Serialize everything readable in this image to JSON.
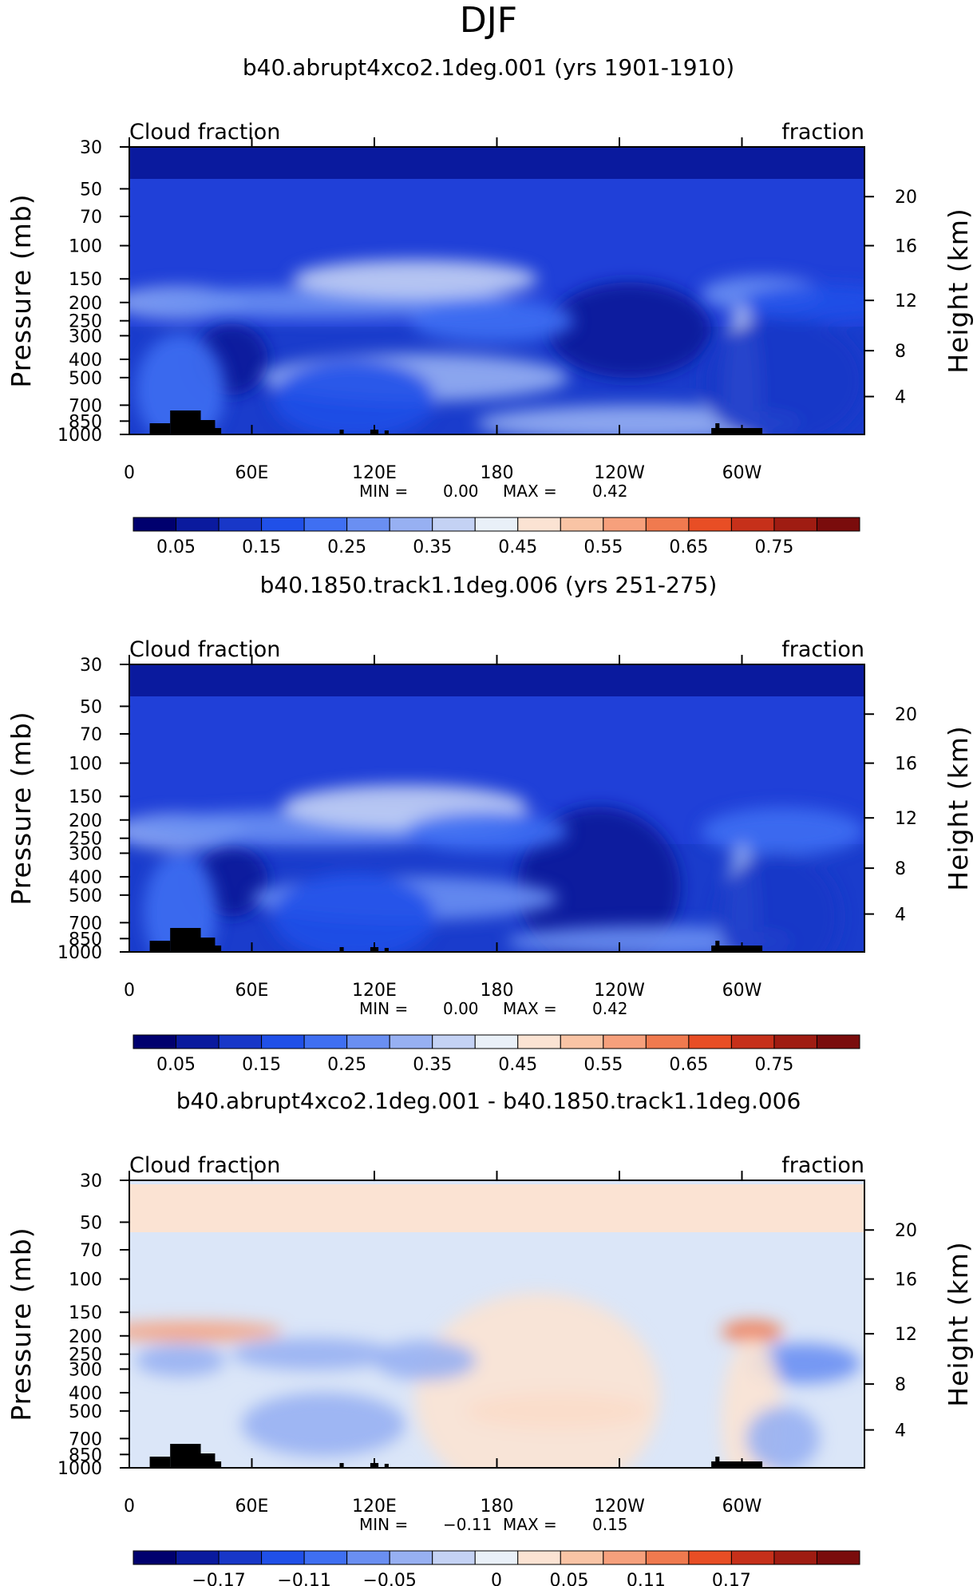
{
  "page_title": "DJF",
  "chart_data": [
    {
      "type": "heatmap",
      "title": "b40.abrupt4xco2.1deg.001 (yrs 1901-1910)",
      "left_string": "Cloud fraction",
      "right_string": "fraction",
      "ylabel": "Pressure (mb)",
      "y2label": "Height (km)",
      "xlim": [
        0,
        360
      ],
      "x_ticks": [
        "0",
        "60E",
        "120E",
        "180",
        "120W",
        "60W"
      ],
      "y_ticks": [
        "30",
        "50",
        "70",
        "100",
        "150",
        "200",
        "250",
        "300",
        "400",
        "500",
        "700",
        "850",
        "1000"
      ],
      "y2_ticks": [
        "20",
        "16",
        "12",
        "8",
        "4"
      ],
      "min_label": "MIN =",
      "min": "0.00",
      "max_label": "MAX =",
      "max": "0.42",
      "colorbar_ticks": [
        "0.05",
        "0.15",
        "0.25",
        "0.35",
        "0.45",
        "0.55",
        "0.65",
        "0.75"
      ],
      "colorbar_colors": [
        "#00006e",
        "#0a1a9e",
        "#1837c8",
        "#2050e8",
        "#3f6ff2",
        "#6a8ff2",
        "#97b0f2",
        "#c4d2f4",
        "#e9f0f8",
        "#fbe3d3",
        "#f9c4a5",
        "#f6a07c",
        "#f07a4f",
        "#e84e25",
        "#c6301a",
        "#9f1c12",
        "#7a0c0c"
      ],
      "features": [
        {
          "lon": 25,
          "p": 200,
          "w": 32,
          "h": 40,
          "v": 0.32
        },
        {
          "lon": 25,
          "p": 580,
          "w": 22,
          "h": 140,
          "v": 0.22
        },
        {
          "lon": 95,
          "p": 200,
          "w": 95,
          "h": 38,
          "v": 0.26
        },
        {
          "lon": 140,
          "p": 150,
          "w": 60,
          "h": 48,
          "v": 0.36
        },
        {
          "lon": 140,
          "p": 500,
          "w": 75,
          "h": 60,
          "v": 0.32
        },
        {
          "lon": 110,
          "p": 650,
          "w": 40,
          "h": 100,
          "v": 0.18
        },
        {
          "lon": 178,
          "p": 250,
          "w": 40,
          "h": 55,
          "v": 0.2
        },
        {
          "lon": 310,
          "p": 180,
          "w": 30,
          "h": 45,
          "v": 0.28
        },
        {
          "lon": 300,
          "p": 650,
          "w": 9,
          "h": 230,
          "v": 0.36
        },
        {
          "lon": 250,
          "p": 870,
          "w": 80,
          "h": 45,
          "v": 0.33
        },
        {
          "lon": 320,
          "p": 520,
          "w": 40,
          "h": 160,
          "v": 0.14
        },
        {
          "lon": 340,
          "p": 200,
          "w": 40,
          "h": 45,
          "v": 0.18
        }
      ],
      "dark_regions": [
        {
          "lon": 245,
          "p": 280,
          "w": 40,
          "h": 120
        },
        {
          "lon": 50,
          "p": 400,
          "w": 18,
          "h": 90
        }
      ]
    },
    {
      "type": "heatmap",
      "title": "b40.1850.track1.1deg.006 (yrs 251-275)",
      "left_string": "Cloud fraction",
      "right_string": "fraction",
      "ylabel": "Pressure (mb)",
      "y2label": "Height (km)",
      "xlim": [
        0,
        360
      ],
      "x_ticks": [
        "0",
        "60E",
        "120E",
        "180",
        "120W",
        "60W"
      ],
      "y_ticks": [
        "30",
        "50",
        "70",
        "100",
        "150",
        "200",
        "250",
        "300",
        "400",
        "500",
        "700",
        "850",
        "1000"
      ],
      "y2_ticks": [
        "20",
        "16",
        "12",
        "8",
        "4"
      ],
      "min_label": "MIN =",
      "min": "0.00",
      "max_label": "MAX =",
      "max": "0.42",
      "colorbar_ticks": [
        "0.05",
        "0.15",
        "0.25",
        "0.35",
        "0.45",
        "0.55",
        "0.65",
        "0.75"
      ],
      "colorbar_colors": [
        "#00006e",
        "#0a1a9e",
        "#1837c8",
        "#2050e8",
        "#3f6ff2",
        "#6a8ff2",
        "#97b0f2",
        "#c4d2f4",
        "#e9f0f8",
        "#fbe3d3",
        "#f9c4a5",
        "#f6a07c",
        "#f07a4f",
        "#e84e25",
        "#c6301a",
        "#9f1c12",
        "#7a0c0c"
      ],
      "features": [
        {
          "lon": 25,
          "p": 230,
          "w": 32,
          "h": 45,
          "v": 0.33
        },
        {
          "lon": 25,
          "p": 620,
          "w": 18,
          "h": 150,
          "v": 0.22
        },
        {
          "lon": 95,
          "p": 220,
          "w": 95,
          "h": 45,
          "v": 0.27
        },
        {
          "lon": 135,
          "p": 170,
          "w": 60,
          "h": 55,
          "v": 0.36
        },
        {
          "lon": 135,
          "p": 520,
          "w": 75,
          "h": 55,
          "v": 0.3
        },
        {
          "lon": 110,
          "p": 650,
          "w": 40,
          "h": 110,
          "v": 0.18
        },
        {
          "lon": 175,
          "p": 230,
          "w": 40,
          "h": 50,
          "v": 0.2
        },
        {
          "lon": 320,
          "p": 230,
          "w": 40,
          "h": 60,
          "v": 0.22
        },
        {
          "lon": 300,
          "p": 700,
          "w": 8,
          "h": 200,
          "v": 0.34
        },
        {
          "lon": 255,
          "p": 880,
          "w": 70,
          "h": 40,
          "v": 0.3
        },
        {
          "lon": 318,
          "p": 650,
          "w": 30,
          "h": 160,
          "v": 0.15
        }
      ],
      "dark_regions": [
        {
          "lon": 230,
          "p": 450,
          "w": 40,
          "h": 200
        },
        {
          "lon": 50,
          "p": 420,
          "w": 18,
          "h": 90
        }
      ]
    },
    {
      "type": "heatmap",
      "title": "b40.abrupt4xco2.1deg.001 - b40.1850.track1.1deg.006",
      "left_string": "Cloud fraction",
      "right_string": "fraction",
      "ylabel": "Pressure (mb)",
      "y2label": "Height (km)",
      "xlim": [
        0,
        360
      ],
      "x_ticks": [
        "0",
        "60E",
        "120E",
        "180",
        "120W",
        "60W"
      ],
      "y_ticks": [
        "30",
        "50",
        "70",
        "100",
        "150",
        "200",
        "250",
        "300",
        "400",
        "500",
        "700",
        "850",
        "1000"
      ],
      "y2_ticks": [
        "20",
        "16",
        "12",
        "8",
        "4"
      ],
      "min_label": "MIN =",
      "min": "−0.11",
      "max_label": "MAX =",
      "max": "0.15",
      "colorbar_ticks": [
        "−0.17",
        "−0.11",
        "−0.05",
        "0",
        "0.05",
        "0.11",
        "0.17"
      ],
      "colorbar_colors": [
        "#00006e",
        "#0a1a9e",
        "#1837c8",
        "#2050e8",
        "#3f6ff2",
        "#6a8ff2",
        "#97b0f2",
        "#c4d2f4",
        "#e9f0f8",
        "#fbe3d3",
        "#f9c4a5",
        "#f6a07c",
        "#f07a4f",
        "#e84e25",
        "#c6301a",
        "#9f1c12",
        "#7a0c0c"
      ],
      "features": [
        {
          "lon": 30,
          "p": 190,
          "w": 45,
          "h": 25,
          "v": 0.09
        },
        {
          "lon": 305,
          "p": 190,
          "w": 15,
          "h": 28,
          "v": 0.12
        },
        {
          "lon": 210,
          "p": 500,
          "w": 45,
          "h": 45,
          "v": 0.08
        },
        {
          "lon": 200,
          "p": 420,
          "w": 60,
          "h": 260,
          "v": 0.03
        },
        {
          "lon": 25,
          "p": 270,
          "w": 22,
          "h": 40,
          "v": -0.07
        },
        {
          "lon": 90,
          "p": 250,
          "w": 40,
          "h": 40,
          "v": -0.05
        },
        {
          "lon": 330,
          "p": 280,
          "w": 28,
          "h": 50,
          "v": -0.08
        },
        {
          "lon": 95,
          "p": 590,
          "w": 40,
          "h": 80,
          "v": -0.05
        },
        {
          "lon": 145,
          "p": 270,
          "w": 25,
          "h": 50,
          "v": -0.05
        },
        {
          "lon": 305,
          "p": 550,
          "w": 15,
          "h": 200,
          "v": 0.03
        },
        {
          "lon": 320,
          "p": 700,
          "w": 18,
          "h": 80,
          "v": -0.06
        }
      ],
      "dark_regions": []
    }
  ]
}
